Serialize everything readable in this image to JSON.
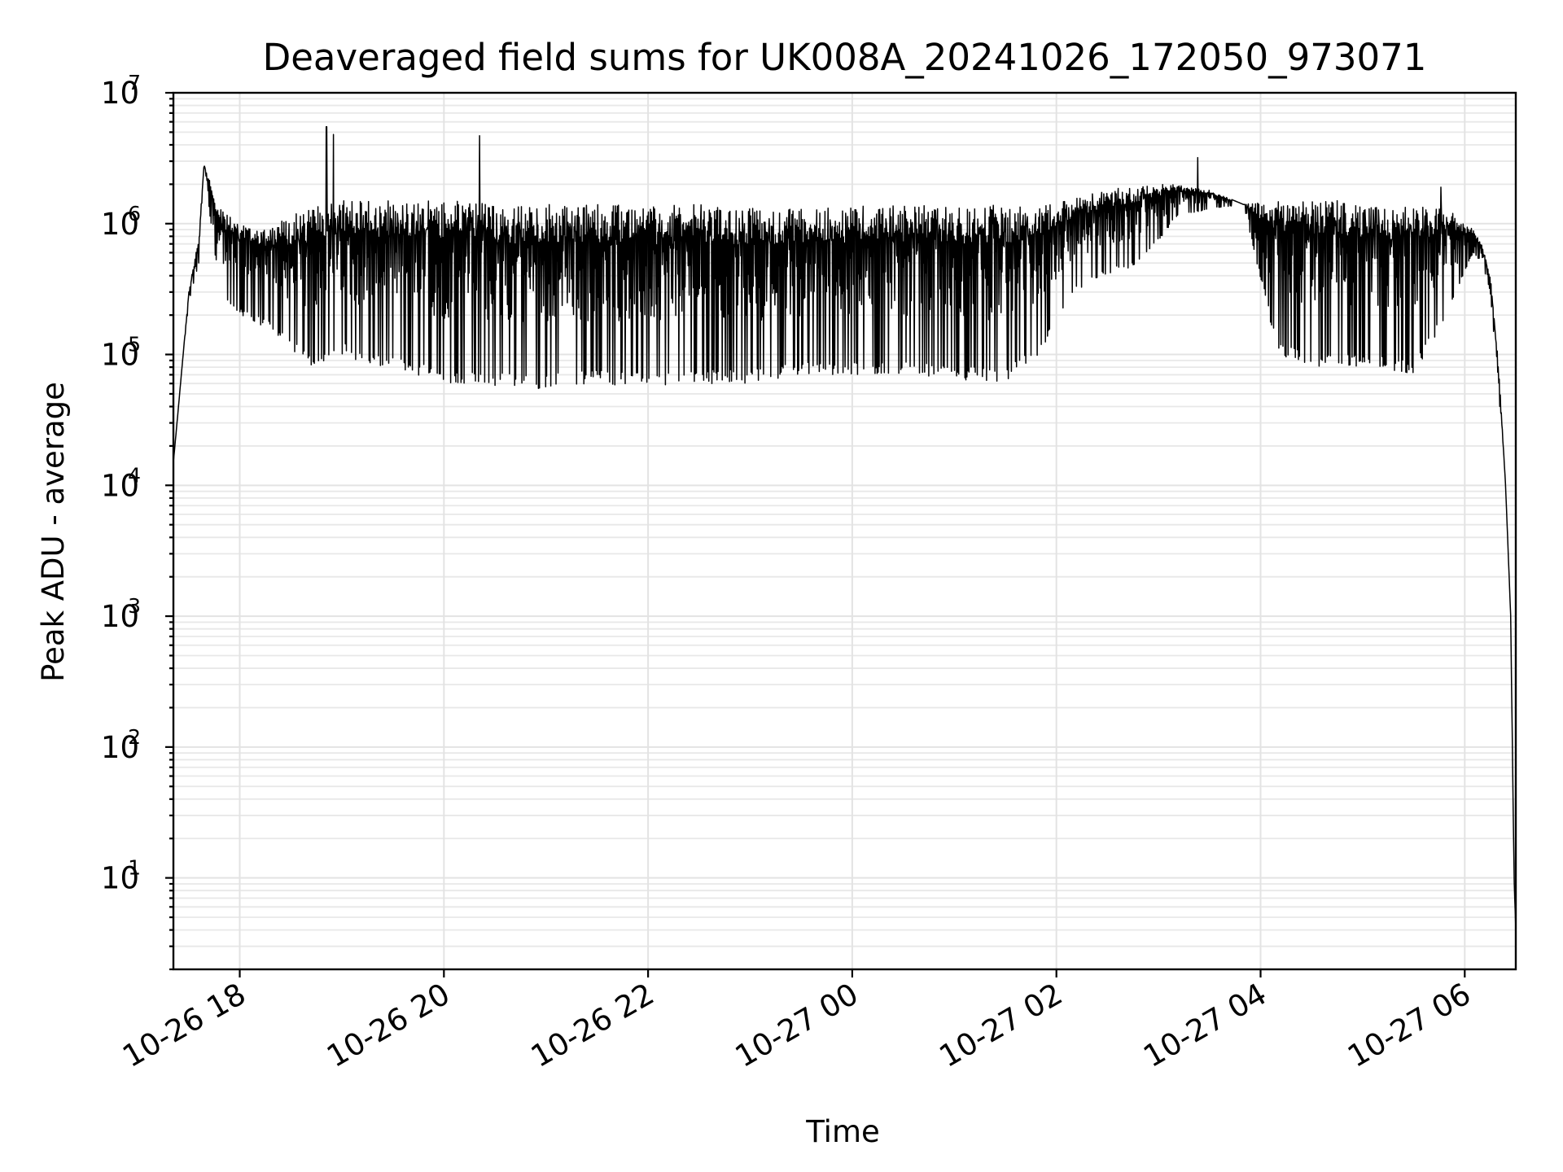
{
  "chart_data": {
    "type": "line",
    "title": "Deaveraged field sums for UK008A_20241026_172050_973071",
    "xlabel": "Time",
    "ylabel": "Peak ADU - average",
    "yscale": "log",
    "ylim": [
      2,
      10000000
    ],
    "xlim": [
      "2024-10-26 17:21",
      "2024-10-27 06:30"
    ],
    "grid": true,
    "x_tick_labels": [
      "10-26 18",
      "10-26 20",
      "10-26 22",
      "10-27 00",
      "10-27 02",
      "10-27 04",
      "10-27 06"
    ],
    "x_ticks": [
      "2024-10-26 18:00",
      "2024-10-26 20:00",
      "2024-10-26 22:00",
      "2024-10-27 00:00",
      "2024-10-27 02:00",
      "2024-10-27 04:00",
      "2024-10-27 06:00"
    ],
    "y_tick_labels": [
      {
        "base": "10",
        "exp": "1",
        "value": 10
      },
      {
        "base": "10",
        "exp": "2",
        "value": 100
      },
      {
        "base": "10",
        "exp": "3",
        "value": 1000
      },
      {
        "base": "10",
        "exp": "4",
        "value": 10000
      },
      {
        "base": "10",
        "exp": "5",
        "value": 100000
      },
      {
        "base": "10",
        "exp": "6",
        "value": 1000000
      },
      {
        "base": "10",
        "exp": "7",
        "value": 10000000
      }
    ],
    "series": [
      {
        "color": "#000000",
        "x": [
          "2024-10-26 17:21",
          "2024-10-26 17:24",
          "2024-10-26 17:30",
          "2024-10-26 17:36",
          "2024-10-26 17:39",
          "2024-10-26 17:45",
          "2024-10-26 17:51",
          "2024-10-26 18:00",
          "2024-10-26 18:20",
          "2024-10-26 18:40",
          "2024-10-26 19:00",
          "2024-10-26 19:20",
          "2024-10-26 19:40",
          "2024-10-26 20:00",
          "2024-10-26 20:20",
          "2024-10-26 20:40",
          "2024-10-26 21:00",
          "2024-10-26 21:30",
          "2024-10-26 22:00",
          "2024-10-26 22:30",
          "2024-10-26 23:00",
          "2024-10-26 23:30",
          "2024-10-27 00:00",
          "2024-10-27 00:30",
          "2024-10-27 01:00",
          "2024-10-27 01:30",
          "2024-10-27 01:50",
          "2024-10-27 02:10",
          "2024-10-27 02:30",
          "2024-10-27 02:50",
          "2024-10-27 03:10",
          "2024-10-27 03:30",
          "2024-10-27 03:50",
          "2024-10-27 04:10",
          "2024-10-27 04:30",
          "2024-10-27 04:50",
          "2024-10-27 05:10",
          "2024-10-27 05:30",
          "2024-10-27 05:50",
          "2024-10-27 06:05",
          "2024-10-27 06:10",
          "2024-10-27 06:15",
          "2024-10-27 06:20",
          "2024-10-27 06:24",
          "2024-10-27 06:27",
          "2024-10-27 06:29",
          "2024-10-27 06:30"
        ],
        "y": [
          15000,
          40000,
          250000,
          500000,
          2800000,
          600000,
          250000,
          200000,
          150000,
          80000,
          100000,
          80000,
          70000,
          60000,
          60000,
          55000,
          55000,
          60000,
          55000,
          60000,
          60000,
          70000,
          70000,
          70000,
          65000,
          60000,
          100000,
          300000,
          400000,
          500000,
          1100000,
          1300000,
          1400000,
          100000,
          80000,
          80000,
          80000,
          70000,
          200000,
          600000,
          500000,
          300000,
          50000,
          10000,
          1000,
          10,
          4
        ],
        "upper_envelope": [
          15000,
          40000,
          300000,
          800000,
          2800000,
          1700000,
          1200000,
          1000000,
          1000000,
          1300000,
          1500000,
          1500000,
          1500000,
          1500000,
          1450000,
          1400000,
          1400000,
          1400000,
          1400000,
          1400000,
          1350000,
          1300000,
          1350000,
          1400000,
          1350000,
          1400000,
          1400000,
          1600000,
          1800000,
          2000000,
          2000000,
          1800000,
          1400000,
          1500000,
          1500000,
          1500000,
          1400000,
          1400000,
          1300000,
          900000,
          700000,
          400000,
          80000,
          10000,
          1000,
          10,
          4
        ],
        "spikes": [
          {
            "x": "2024-10-26 18:51",
            "y": 5500000
          },
          {
            "x": "2024-10-26 18:55",
            "y": 4800000
          },
          {
            "x": "2024-10-26 20:21",
            "y": 4700000
          },
          {
            "x": "2024-10-27 03:23",
            "y": 3200000
          },
          {
            "x": "2024-10-27 05:46",
            "y": 1900000
          }
        ]
      }
    ]
  }
}
